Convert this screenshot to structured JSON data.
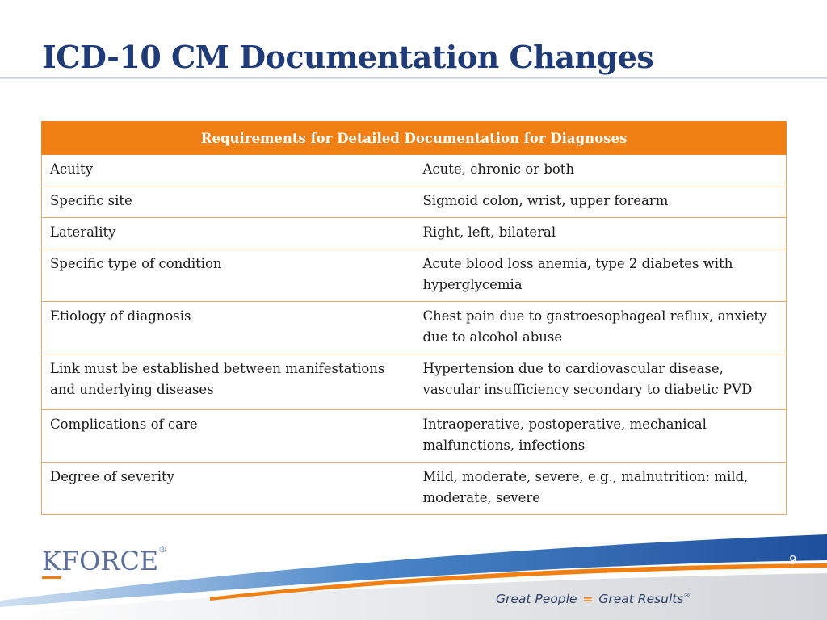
{
  "slide": {
    "title": "ICD-10 CM Documentation Changes",
    "page_number": "9"
  },
  "table": {
    "header": "Requirements for Detailed Documentation for Diagnoses",
    "rows": [
      {
        "requirement": "Acuity",
        "examples": "Acute, chronic or both"
      },
      {
        "requirement": "Specific site",
        "examples": "Sigmoid colon, wrist, upper forearm"
      },
      {
        "requirement": "Laterality",
        "examples": "Right, left, bilateral"
      },
      {
        "requirement": "Specific type of condition",
        "examples": "Acute blood loss anemia, type 2 diabetes with hyperglycemia"
      },
      {
        "requirement": "Etiology of diagnosis",
        "examples": "Chest pain due to gastroesophageal reflux, anxiety due to alcohol abuse"
      },
      {
        "requirement": "Link must be established between manifestations and underlying diseases",
        "examples": "Hypertension due to cardiovascular disease, vascular insufficiency secondary to diabetic PVD"
      },
      {
        "requirement": "Complications of care",
        "examples": "Intraoperative, postoperative, mechanical malfunctions, infections"
      },
      {
        "requirement": "Degree of severity",
        "examples": "Mild, moderate, severe, e.g., malnutrition: mild, moderate, severe"
      }
    ]
  },
  "footer": {
    "logo_text_first": "K",
    "logo_text_rest": "FORCE",
    "logo_trademark": "®",
    "tagline_left": "Great People",
    "tagline_equals": "=",
    "tagline_right": "Great Results",
    "tagline_trademark": "®"
  },
  "colors": {
    "title": "#1f3b78",
    "header_fill": "#f07f14",
    "row_border": "#e8a971",
    "footer_blue": "#2f5ea8",
    "footer_orange": "#f07f14"
  }
}
